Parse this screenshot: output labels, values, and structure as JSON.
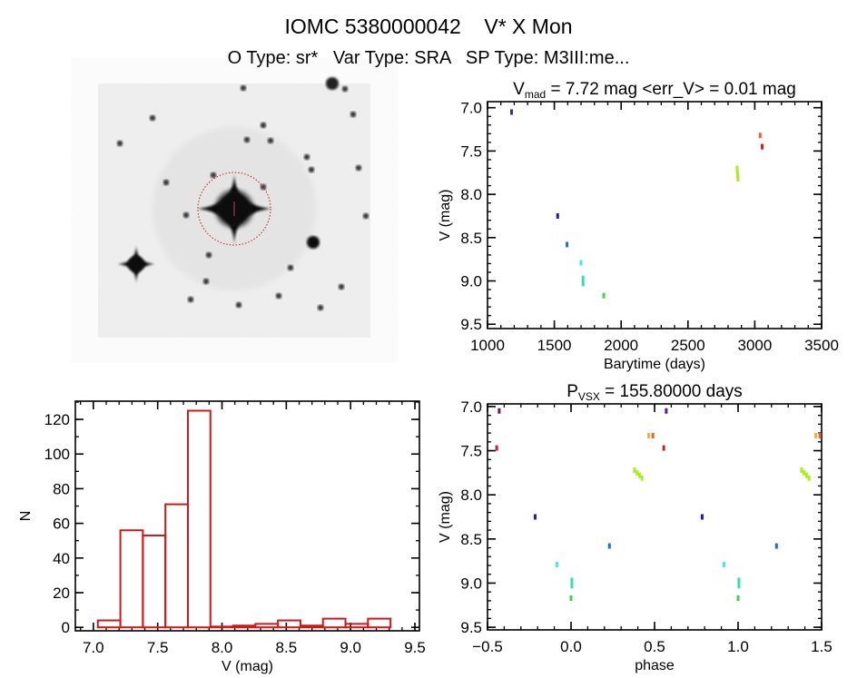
{
  "header": {
    "title": "IOMC 5380000042    V* X Mon",
    "subtitle": "O Type: sr*   Var Type: SRA   SP Type: M3III:me..."
  },
  "colors": {
    "purple": "#5b1f7e",
    "darkblue": "#2b1aa5",
    "blue": "#1f6fd6",
    "cyan": "#48e6e6",
    "teal": "#35e0a8",
    "green": "#3fd44a",
    "yellowgreen": "#a9ee22",
    "yelloworange": "#f2b43a",
    "orange": "#f0622a",
    "red": "#d22020",
    "histogram": "#d01818"
  },
  "chart_data": [
    {
      "type": "image",
      "description_label": "sky-image"
    },
    {
      "type": "scatter",
      "title_main": "V",
      "title_sub": "mad",
      "title_rest": " = 7.72 mag <err_V> = 0.01 mag",
      "xlabel": "Barytime (days)",
      "ylabel": "V (mag)",
      "xlim": [
        1000,
        3500
      ],
      "ylim": [
        9.55,
        6.93
      ],
      "y_reversed": true,
      "xticks": [
        1000,
        1500,
        2000,
        2500,
        3000,
        3500
      ],
      "xtick_labels": [
        "1000",
        "1500",
        "2000",
        "2500",
        "3000",
        "3500"
      ],
      "yticks": [
        7.0,
        7.5,
        8.0,
        8.5,
        9.0,
        9.5
      ],
      "ytick_labels": [
        "7.0",
        "7.5",
        "8.0",
        "8.5",
        "9.0",
        "9.5"
      ],
      "points": [
        {
          "x": 1180,
          "y": 7.05,
          "c": "purple"
        },
        {
          "x": 1525,
          "y": 8.25,
          "c": "darkblue"
        },
        {
          "x": 1595,
          "y": 8.58,
          "c": "blue"
        },
        {
          "x": 1700,
          "y": 8.79,
          "c": "cyan"
        },
        {
          "x": 1715,
          "y": 8.97,
          "c": "teal"
        },
        {
          "x": 1715,
          "y": 9.03,
          "c": "teal"
        },
        {
          "x": 1870,
          "y": 9.17,
          "c": "green"
        },
        {
          "x": 2868,
          "y": 7.7,
          "c": "yellowgreen"
        },
        {
          "x": 2870,
          "y": 7.74,
          "c": "yellowgreen"
        },
        {
          "x": 2872,
          "y": 7.78,
          "c": "yellowgreen"
        },
        {
          "x": 2874,
          "y": 7.82,
          "c": "yellowgreen"
        },
        {
          "x": 3040,
          "y": 7.32,
          "c": "orange"
        },
        {
          "x": 3055,
          "y": 7.45,
          "c": "red"
        }
      ]
    },
    {
      "type": "bar",
      "histogram": true,
      "xlabel": "V (mag)",
      "ylabel": "N",
      "xlim": [
        6.86,
        9.535
      ],
      "ylim": [
        -2,
        130.5
      ],
      "xticks": [
        7.0,
        7.5,
        8.0,
        8.5,
        9.0,
        9.5
      ],
      "xtick_labels": [
        "7.0",
        "7.5",
        "8.0",
        "8.5",
        "9.0",
        "9.5"
      ],
      "yticks": [
        0,
        20,
        40,
        60,
        80,
        100,
        120
      ],
      "ytick_labels": [
        "0",
        "20",
        "40",
        "60",
        "80",
        "100",
        "120"
      ],
      "bin_start": 7.035,
      "bin_width": 0.175,
      "values": [
        4,
        56,
        53,
        71,
        125,
        0,
        1,
        2,
        4,
        1,
        5,
        2,
        5
      ]
    },
    {
      "type": "scatter",
      "title_main": "P",
      "title_sub": "VSX",
      "title_rest": " = 155.80000 days",
      "xlabel": "phase",
      "ylabel": "V (mag)",
      "xlim": [
        -0.5,
        1.5
      ],
      "ylim": [
        9.53,
        6.97
      ],
      "y_reversed": true,
      "xticks": [
        -0.5,
        0.0,
        0.5,
        1.0,
        1.5
      ],
      "xtick_labels": [
        "−0.5",
        "0.0",
        "0.5",
        "1.0",
        "1.5"
      ],
      "yticks": [
        7.0,
        7.5,
        8.0,
        8.5,
        9.0,
        9.5
      ],
      "ytick_labels": [
        "7.0",
        "7.5",
        "8.0",
        "8.5",
        "9.0",
        "9.5"
      ],
      "points": [
        {
          "x": -0.43,
          "y": 7.05,
          "c": "purple"
        },
        {
          "x": 0.57,
          "y": 7.05,
          "c": "purple"
        },
        {
          "x": -0.445,
          "y": 7.47,
          "c": "red"
        },
        {
          "x": 0.555,
          "y": 7.47,
          "c": "red"
        },
        {
          "x": 0.465,
          "y": 7.33,
          "c": "yelloworange"
        },
        {
          "x": 0.49,
          "y": 7.33,
          "c": "orange"
        },
        {
          "x": 1.465,
          "y": 7.33,
          "c": "yelloworange"
        },
        {
          "x": 1.49,
          "y": 7.33,
          "c": "orange"
        },
        {
          "x": 0.38,
          "y": 7.72,
          "c": "yellowgreen"
        },
        {
          "x": 0.395,
          "y": 7.75,
          "c": "yellowgreen"
        },
        {
          "x": 0.41,
          "y": 7.78,
          "c": "yellowgreen"
        },
        {
          "x": 0.425,
          "y": 7.81,
          "c": "yellowgreen"
        },
        {
          "x": 1.38,
          "y": 7.72,
          "c": "yellowgreen"
        },
        {
          "x": 1.395,
          "y": 7.75,
          "c": "yellowgreen"
        },
        {
          "x": 1.41,
          "y": 7.78,
          "c": "yellowgreen"
        },
        {
          "x": 1.425,
          "y": 7.81,
          "c": "yellowgreen"
        },
        {
          "x": -0.215,
          "y": 8.25,
          "c": "darkblue"
        },
        {
          "x": 0.785,
          "y": 8.25,
          "c": "darkblue"
        },
        {
          "x": 0.23,
          "y": 8.58,
          "c": "blue"
        },
        {
          "x": 1.23,
          "y": 8.58,
          "c": "blue"
        },
        {
          "x": -0.085,
          "y": 8.79,
          "c": "cyan"
        },
        {
          "x": 0.915,
          "y": 8.79,
          "c": "cyan"
        },
        {
          "x": 0.005,
          "y": 8.97,
          "c": "teal"
        },
        {
          "x": 0.005,
          "y": 9.03,
          "c": "teal"
        },
        {
          "x": 1.005,
          "y": 8.97,
          "c": "teal"
        },
        {
          "x": 1.005,
          "y": 9.03,
          "c": "teal"
        },
        {
          "x": 0.0,
          "y": 9.17,
          "c": "green"
        },
        {
          "x": 1.0,
          "y": 9.17,
          "c": "green"
        }
      ]
    }
  ]
}
